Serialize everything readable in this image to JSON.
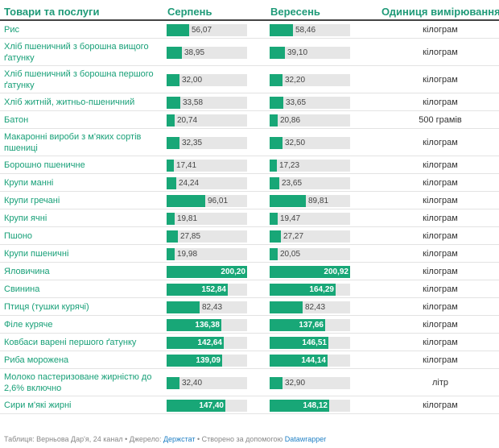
{
  "headers": {
    "product": "Товари та послуги",
    "aug": "Серпень",
    "sep": "Вересень",
    "unit": "Одиниця вимірювання"
  },
  "colors": {
    "bar": "#18a777",
    "track": "#e6e6e6",
    "header": "#1f9a78"
  },
  "chart_data": {
    "type": "table",
    "title": "",
    "columns": [
      "Товари та послуги",
      "Серпень",
      "Вересень",
      "Одиниця вимірювання"
    ],
    "max_value": 200.92,
    "rows": [
      {
        "name": "Рис",
        "aug": 56.07,
        "aug_label": "56,07",
        "sep": 58.46,
        "sep_label": "58,46",
        "unit": "кілограм"
      },
      {
        "name": "Хліб пшеничний з борошна вищого ґатунку",
        "aug": 38.95,
        "aug_label": "38,95",
        "sep": 39.1,
        "sep_label": "39,10",
        "unit": "кілограм"
      },
      {
        "name": "Хліб пшеничний з борошна першого ґатунку",
        "aug": 32.0,
        "aug_label": "32,00",
        "sep": 32.2,
        "sep_label": "32,20",
        "unit": "кілограм"
      },
      {
        "name": "Хліб житній, житньо-пшеничний",
        "aug": 33.58,
        "aug_label": "33,58",
        "sep": 33.65,
        "sep_label": "33,65",
        "unit": "кілограм"
      },
      {
        "name": "Батон",
        "aug": 20.74,
        "aug_label": "20,74",
        "sep": 20.86,
        "sep_label": "20,86",
        "unit": "500 грамів"
      },
      {
        "name": "Макаронні вироби з м'яких сортів пшениці",
        "aug": 32.35,
        "aug_label": "32,35",
        "sep": 32.5,
        "sep_label": "32,50",
        "unit": "кілограм"
      },
      {
        "name": "Борошно пшеничне",
        "aug": 17.41,
        "aug_label": "17,41",
        "sep": 17.23,
        "sep_label": "17,23",
        "unit": "кілограм"
      },
      {
        "name": "Крупи манні",
        "aug": 24.24,
        "aug_label": "24,24",
        "sep": 23.65,
        "sep_label": "23,65",
        "unit": "кілограм"
      },
      {
        "name": "Крупи гречані",
        "aug": 96.01,
        "aug_label": "96,01",
        "sep": 89.81,
        "sep_label": "89,81",
        "unit": "кілограм"
      },
      {
        "name": "Крупи ячні",
        "aug": 19.81,
        "aug_label": "19,81",
        "sep": 19.47,
        "sep_label": "19,47",
        "unit": "кілограм"
      },
      {
        "name": "Пшоно",
        "aug": 27.85,
        "aug_label": "27,85",
        "sep": 27.27,
        "sep_label": "27,27",
        "unit": "кілограм"
      },
      {
        "name": "Крупи пшеничні",
        "aug": 19.98,
        "aug_label": "19,98",
        "sep": 20.05,
        "sep_label": "20,05",
        "unit": "кілограм"
      },
      {
        "name": "Яловичина",
        "aug": 200.2,
        "aug_label": "200,20",
        "sep": 200.92,
        "sep_label": "200,92",
        "unit": "кілограм"
      },
      {
        "name": "Свинина",
        "aug": 152.84,
        "aug_label": "152,84",
        "sep": 164.29,
        "sep_label": "164,29",
        "unit": "кілограм"
      },
      {
        "name": "Птиця (тушки курячі)",
        "aug": 82.43,
        "aug_label": "82,43",
        "sep": 82.43,
        "sep_label": "82,43",
        "unit": "кілограм"
      },
      {
        "name": "Філе куряче",
        "aug": 136.38,
        "aug_label": "136,38",
        "sep": 137.66,
        "sep_label": "137,66",
        "unit": "кілограм"
      },
      {
        "name": "Ковбаси варені першого ґатунку",
        "aug": 142.64,
        "aug_label": "142,64",
        "sep": 146.51,
        "sep_label": "146,51",
        "unit": "кілограм"
      },
      {
        "name": "Риба морожена",
        "aug": 139.09,
        "aug_label": "139,09",
        "sep": 144.14,
        "sep_label": "144,14",
        "unit": "кілограм"
      },
      {
        "name": "Молоко пастеризоване жирністю до 2,6% включно",
        "aug": 32.4,
        "aug_label": "32,40",
        "sep": 32.9,
        "sep_label": "32,90",
        "unit": "літр"
      },
      {
        "name": "Сири м'які жирні",
        "aug": 147.4,
        "aug_label": "147,40",
        "sep": 148.12,
        "sep_label": "148,12",
        "unit": "кілограм"
      }
    ]
  },
  "footer": {
    "prefix": "Таблиця: Верньова Дар'я, 24 канал • Джерело: ",
    "source": "Держстат",
    "middle": " • Створено за допомогою ",
    "tool": "Datawrapper"
  }
}
